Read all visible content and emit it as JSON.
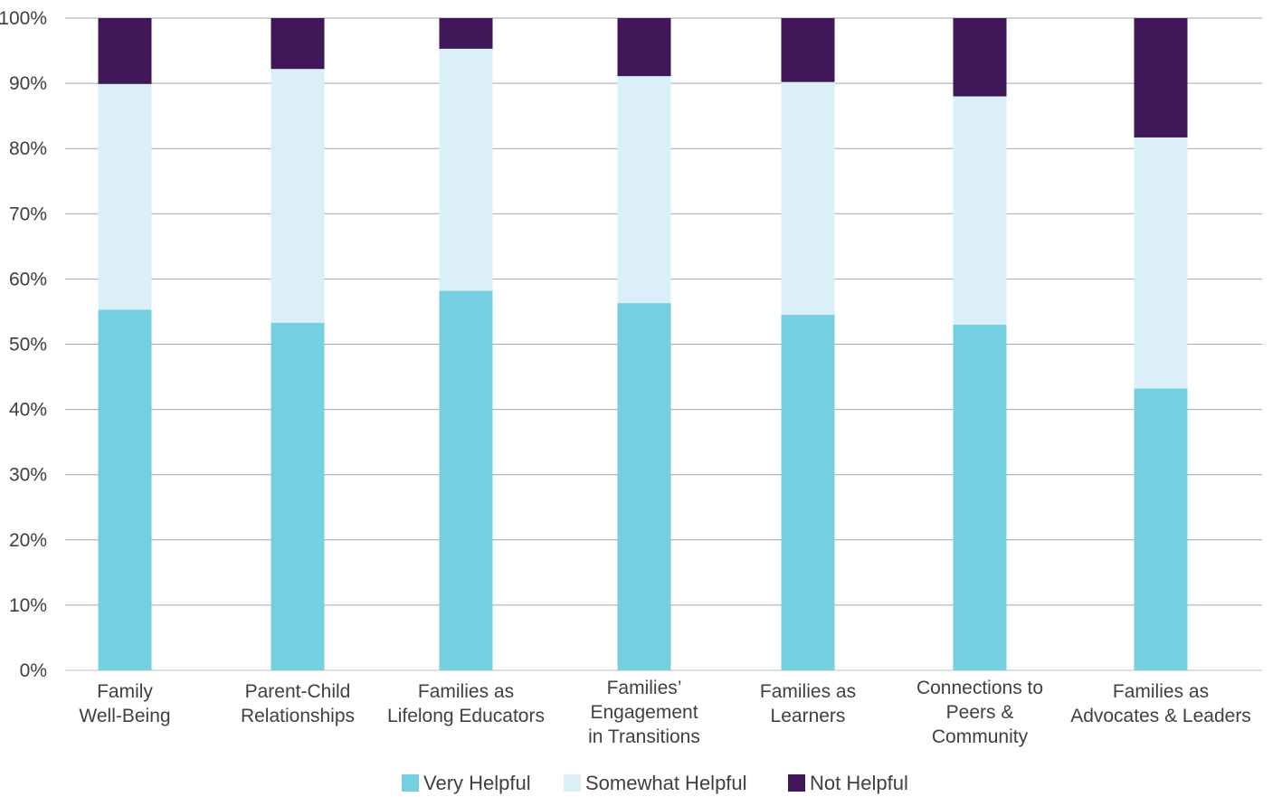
{
  "chart_data": {
    "type": "bar",
    "stacked": true,
    "title": "",
    "xlabel": "",
    "ylabel": "",
    "ylim": [
      0,
      100
    ],
    "y_ticks": [
      "0%",
      "10%",
      "20%",
      "30%",
      "40%",
      "50%",
      "60%",
      "70%",
      "80%",
      "90%",
      "100%"
    ],
    "grid": true,
    "legend_position": "bottom",
    "categories": [
      [
        "Family",
        "Well-Being"
      ],
      [
        "Parent-Child",
        "Relationships"
      ],
      [
        "Families as",
        "Lifelong Educators"
      ],
      [
        "Families’",
        "Engagement",
        "in Transitions"
      ],
      [
        "Families as",
        "Learners"
      ],
      [
        "Connections to",
        "Peers &",
        "Community"
      ],
      [
        "Families as",
        "Advocates & Leaders"
      ]
    ],
    "series": [
      {
        "name": "Very Helpful",
        "color": "#74cfe0",
        "values": [
          55.3,
          53.3,
          58.2,
          56.3,
          54.5,
          53.0,
          43.2
        ]
      },
      {
        "name": "Somewhat Helpful",
        "color": "#daeff7",
        "values": [
          34.6,
          38.9,
          37.1,
          34.8,
          35.7,
          35.0,
          38.5
        ]
      },
      {
        "name": "Not Helpful",
        "color": "#40185a",
        "values": [
          10.1,
          7.8,
          4.7,
          8.9,
          9.8,
          12.0,
          18.3
        ]
      }
    ]
  }
}
